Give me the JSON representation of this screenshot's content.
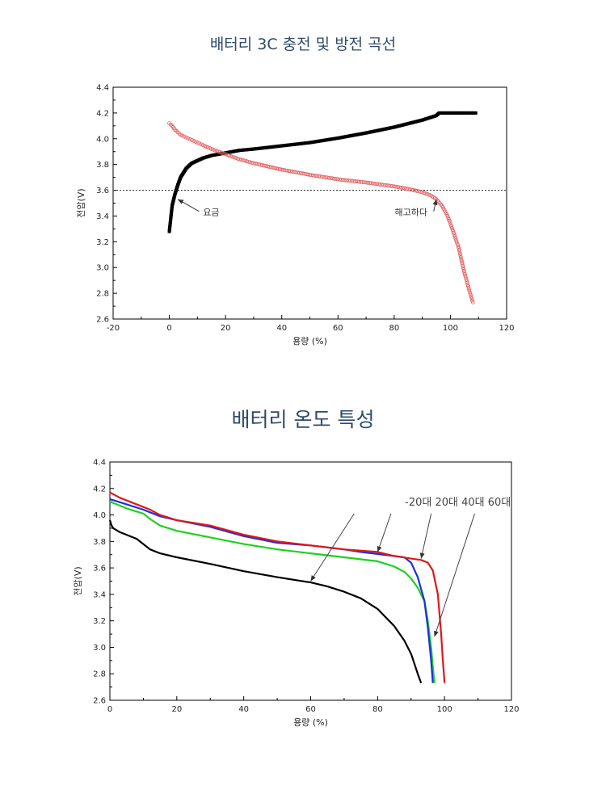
{
  "chart_data": [
    {
      "type": "scatter",
      "title": "배터리 3C 충전 및 방전 곡선",
      "xlabel": "용량 (%)",
      "ylabel": "전압(V)",
      "xlim": [
        -20,
        120
      ],
      "ylim": [
        2.6,
        4.4
      ],
      "xticks": [
        "-20",
        "0",
        "20",
        "40",
        "60",
        "80",
        "100",
        "120"
      ],
      "yticks": [
        "2.6",
        "2.8",
        "3.0",
        "3.2",
        "3.4",
        "3.6",
        "3.8",
        "4.0",
        "4.2",
        "4.4"
      ],
      "reference_line": {
        "y": 3.6,
        "style": "dotted"
      },
      "series": [
        {
          "name": "요금",
          "marker": "filled-square",
          "color": "#000000",
          "x": [
            0,
            0.5,
            1,
            2,
            3,
            4,
            6,
            8,
            10,
            12,
            15,
            20,
            25,
            30,
            40,
            50,
            60,
            70,
            80,
            90,
            95,
            96,
            100,
            105,
            109
          ],
          "y": [
            3.28,
            3.38,
            3.48,
            3.57,
            3.64,
            3.7,
            3.77,
            3.81,
            3.83,
            3.85,
            3.87,
            3.89,
            3.91,
            3.92,
            3.945,
            3.97,
            4.005,
            4.045,
            4.09,
            4.145,
            4.18,
            4.2,
            4.2,
            4.2,
            4.2
          ]
        },
        {
          "name": "해고하다",
          "marker": "hollow-circle",
          "color": "#e06060",
          "x": [
            0,
            1,
            2,
            4,
            6,
            8,
            10,
            12,
            15,
            20,
            25,
            30,
            40,
            50,
            60,
            70,
            80,
            85,
            90,
            93,
            95,
            97,
            99,
            101,
            103,
            104,
            105,
            106,
            107,
            108
          ],
          "y": [
            4.12,
            4.1,
            4.07,
            4.03,
            4.01,
            3.99,
            3.97,
            3.95,
            3.92,
            3.88,
            3.84,
            3.81,
            3.76,
            3.72,
            3.685,
            3.66,
            3.63,
            3.61,
            3.585,
            3.56,
            3.53,
            3.48,
            3.4,
            3.28,
            3.15,
            3.05,
            2.96,
            2.88,
            2.8,
            2.73
          ]
        }
      ],
      "annotations": [
        {
          "text": "요금",
          "x": 12,
          "y": 3.43,
          "arrow_to": [
            3,
            3.53
          ]
        },
        {
          "text": "해고하다",
          "x": 86,
          "y": 3.43,
          "arrow_to": [
            95,
            3.53
          ]
        }
      ]
    },
    {
      "type": "line",
      "title": "배터리 온도 특성",
      "xlabel": "용량 (%)",
      "ylabel": "전압(V)",
      "xlim": [
        0,
        120
      ],
      "ylim": [
        2.6,
        4.4
      ],
      "xticks": [
        "0",
        "20",
        "40",
        "60",
        "80",
        "100",
        "120"
      ],
      "yticks": [
        "2.6",
        "2.8",
        "3.0",
        "3.2",
        "3.4",
        "3.6",
        "3.8",
        "4.0",
        "4.2",
        "4.4"
      ],
      "legend_text": "-20대 20대 40대 60대",
      "series": [
        {
          "color": "#000000",
          "x": [
            0,
            0.5,
            1,
            3,
            5,
            8,
            10,
            12,
            15,
            20,
            30,
            40,
            50,
            60,
            65,
            70,
            75,
            80,
            85,
            88,
            90,
            92,
            93
          ],
          "y": [
            3.96,
            3.92,
            3.9,
            3.87,
            3.85,
            3.82,
            3.78,
            3.74,
            3.71,
            3.68,
            3.63,
            3.575,
            3.53,
            3.49,
            3.46,
            3.42,
            3.37,
            3.29,
            3.16,
            3.05,
            2.95,
            2.8,
            2.73
          ]
        },
        {
          "color": "#20d020",
          "x": [
            0,
            2,
            5,
            10,
            12,
            15,
            20,
            30,
            40,
            50,
            60,
            70,
            80,
            85,
            88,
            90,
            92,
            94,
            95,
            96,
            96.5,
            97
          ],
          "y": [
            4.1,
            4.08,
            4.05,
            4.01,
            3.97,
            3.92,
            3.88,
            3.83,
            3.78,
            3.74,
            3.71,
            3.68,
            3.65,
            3.61,
            3.57,
            3.52,
            3.45,
            3.35,
            3.2,
            3.0,
            2.85,
            2.73
          ]
        },
        {
          "color": "#1a30e0",
          "x": [
            0,
            5,
            10,
            15,
            20,
            30,
            40,
            50,
            60,
            70,
            75,
            80,
            85,
            88,
            90,
            92,
            94,
            95,
            96,
            96.5
          ],
          "y": [
            4.12,
            4.08,
            4.04,
            3.99,
            3.96,
            3.91,
            3.84,
            3.79,
            3.77,
            3.74,
            3.72,
            3.705,
            3.69,
            3.68,
            3.64,
            3.53,
            3.35,
            3.15,
            2.9,
            2.73
          ]
        },
        {
          "color": "#e01818",
          "x": [
            0,
            3,
            6,
            10,
            12,
            15,
            20,
            30,
            40,
            50,
            60,
            70,
            80,
            85,
            90,
            93,
            95,
            96.5,
            98,
            99,
            99.5,
            100
          ],
          "y": [
            4.17,
            4.13,
            4.1,
            4.06,
            4.04,
            4.0,
            3.96,
            3.92,
            3.85,
            3.8,
            3.77,
            3.74,
            3.72,
            3.69,
            3.67,
            3.66,
            3.64,
            3.58,
            3.4,
            3.1,
            2.9,
            2.73
          ]
        }
      ],
      "legend_arrows": [
        {
          "from": [
            73,
            4.01
          ],
          "to": [
            60,
            3.5
          ]
        },
        {
          "from": [
            84,
            4.01
          ],
          "to": [
            80,
            3.72
          ]
        },
        {
          "from": [
            96,
            4.01
          ],
          "to": [
            93,
            3.67
          ]
        },
        {
          "from": [
            109,
            4.01
          ],
          "to": [
            97,
            3.08
          ]
        }
      ]
    }
  ]
}
